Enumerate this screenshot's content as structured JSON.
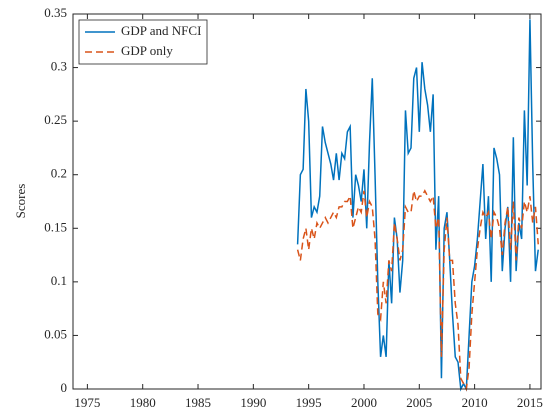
{
  "chart_data": {
    "type": "line",
    "y_label": "Scores",
    "x": [
      1994,
      1994.25,
      1994.5,
      1994.75,
      1995,
      1995.25,
      1995.5,
      1995.75,
      1996,
      1996.25,
      1996.5,
      1996.75,
      1997,
      1997.25,
      1997.5,
      1997.75,
      1998,
      1998.25,
      1998.5,
      1998.75,
      1999,
      1999.25,
      1999.5,
      1999.75,
      2000,
      2000.25,
      2000.5,
      2000.75,
      2001,
      2001.25,
      2001.5,
      2001.75,
      2002,
      2002.25,
      2002.5,
      2002.75,
      2003,
      2003.25,
      2003.5,
      2003.75,
      2004,
      2004.25,
      2004.5,
      2004.75,
      2005,
      2005.25,
      2005.5,
      2005.75,
      2006,
      2006.25,
      2006.5,
      2006.75,
      2007,
      2007.25,
      2007.5,
      2007.75,
      2008,
      2008.25,
      2008.5,
      2008.75,
      2009,
      2009.25,
      2009.5,
      2009.75,
      2010,
      2010.25,
      2010.5,
      2010.75,
      2011,
      2011.25,
      2011.5,
      2011.75,
      2012,
      2012.25,
      2012.5,
      2012.75,
      2013,
      2013.25,
      2013.5,
      2013.75,
      2014,
      2014.25,
      2014.5,
      2014.75,
      2015,
      2015.25,
      2015.5,
      2015.75
    ],
    "series": [
      {
        "name": "GDP and NFCI",
        "color": "#0072bd",
        "style": "solid",
        "values": [
          0.135,
          0.2,
          0.205,
          0.28,
          0.25,
          0.16,
          0.17,
          0.165,
          0.18,
          0.245,
          0.23,
          0.22,
          0.21,
          0.195,
          0.22,
          0.195,
          0.22,
          0.215,
          0.24,
          0.245,
          0.16,
          0.2,
          0.19,
          0.175,
          0.205,
          0.15,
          0.23,
          0.29,
          0.2,
          0.1,
          0.03,
          0.05,
          0.03,
          0.12,
          0.08,
          0.16,
          0.14,
          0.09,
          0.12,
          0.26,
          0.22,
          0.225,
          0.29,
          0.3,
          0.24,
          0.305,
          0.28,
          0.265,
          0.24,
          0.275,
          0.13,
          0.18,
          0.01,
          0.15,
          0.165,
          0.12,
          0.07,
          0.03,
          0.025,
          0,
          0.005,
          0,
          0.05,
          0.1,
          0.115,
          0.14,
          0.175,
          0.21,
          0.14,
          0.18,
          0.1,
          0.225,
          0.215,
          0.2,
          0.11,
          0.15,
          0.17,
          0.1,
          0.235,
          0.11,
          0.155,
          0.14,
          0.26,
          0.19,
          0.345,
          0.21,
          0.11,
          0.13
        ]
      },
      {
        "name": "GDP only",
        "color": "#d95319",
        "style": "dashed",
        "values": [
          0.13,
          0.12,
          0.14,
          0.15,
          0.13,
          0.15,
          0.14,
          0.155,
          0.15,
          0.155,
          0.16,
          0.155,
          0.16,
          0.165,
          0.16,
          0.17,
          0.17,
          0.175,
          0.175,
          0.18,
          0.15,
          0.16,
          0.17,
          0.165,
          0.185,
          0.16,
          0.175,
          0.17,
          0.14,
          0.07,
          0.065,
          0.1,
          0.08,
          0.12,
          0.11,
          0.155,
          0.14,
          0.12,
          0.13,
          0.17,
          0.165,
          0.165,
          0.185,
          0.175,
          0.18,
          0.18,
          0.185,
          0.18,
          0.175,
          0.18,
          0.15,
          0.16,
          0.03,
          0.13,
          0.16,
          0.12,
          0.12,
          0.08,
          0.06,
          0.01,
          0.005,
          0,
          0.02,
          0.07,
          0.1,
          0.13,
          0.15,
          0.165,
          0.16,
          0.165,
          0.14,
          0.165,
          0.16,
          0.15,
          0.125,
          0.155,
          0.17,
          0.13,
          0.175,
          0.12,
          0.16,
          0.15,
          0.175,
          0.165,
          0.18,
          0.155,
          0.17,
          0.135
        ]
      }
    ],
    "xlim": [
      1973.7,
      2016
    ],
    "xticks": [
      1975,
      1980,
      1985,
      1990,
      1995,
      2000,
      2005,
      2010,
      2015
    ],
    "ylim": [
      0,
      0.35
    ],
    "yticks": [
      0,
      0.05,
      0.1,
      0.15,
      0.2,
      0.25,
      0.3,
      0.35
    ],
    "legend": "upper-left",
    "box": true
  }
}
